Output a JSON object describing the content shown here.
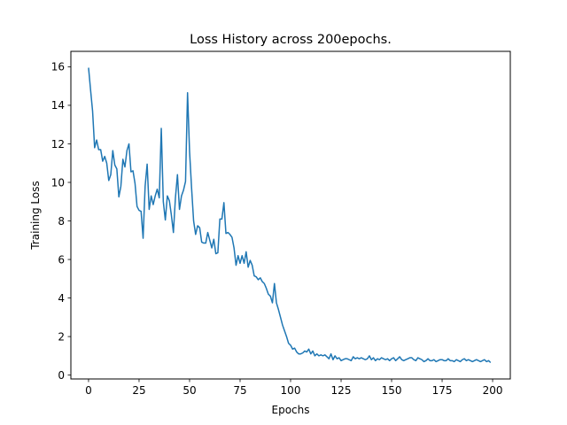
{
  "chart_data": {
    "type": "line",
    "title": "Loss History across 200epochs.",
    "xlabel": "Epochs",
    "ylabel": "Training Loss",
    "xlim": [
      -8.75,
      208.75
    ],
    "ylim": [
      -0.2,
      16.8
    ],
    "grid": false,
    "line_color": "#1f77b4",
    "x_ticks": [
      0,
      25,
      50,
      75,
      100,
      125,
      150,
      175,
      200
    ],
    "y_ticks": [
      0,
      2,
      4,
      6,
      8,
      10,
      12,
      14,
      16
    ],
    "series": [
      {
        "values": [
          15.95,
          14.8,
          13.7,
          11.8,
          12.2,
          11.7,
          11.7,
          11.1,
          11.35,
          11.0,
          10.1,
          10.4,
          11.65,
          10.9,
          10.7,
          9.25,
          9.8,
          11.2,
          10.8,
          11.65,
          12.0,
          10.55,
          10.6,
          9.95,
          8.75,
          8.55,
          8.5,
          7.1,
          9.8,
          10.95,
          8.6,
          9.3,
          8.85,
          9.3,
          9.65,
          9.2,
          12.8,
          9.0,
          8.05,
          9.3,
          9.05,
          8.3,
          7.4,
          9.2,
          10.4,
          8.6,
          9.3,
          9.6,
          10.05,
          14.65,
          11.6,
          9.7,
          8.0,
          7.3,
          7.75,
          7.65,
          6.9,
          6.85,
          6.85,
          7.4,
          7.0,
          6.6,
          7.05,
          6.3,
          6.35,
          8.1,
          8.1,
          8.95,
          7.35,
          7.4,
          7.3,
          7.15,
          6.6,
          5.7,
          6.2,
          5.8,
          6.2,
          5.8,
          6.4,
          5.6,
          5.95,
          5.7,
          5.15,
          5.1,
          4.95,
          5.05,
          4.85,
          4.75,
          4.5,
          4.2,
          4.1,
          3.75,
          4.75,
          3.75,
          3.4,
          3.0,
          2.6,
          2.3,
          2.0,
          1.65,
          1.55,
          1.35,
          1.4,
          1.2,
          1.1,
          1.1,
          1.15,
          1.25,
          1.2,
          1.35,
          1.1,
          1.25,
          1.0,
          1.1,
          1.0,
          1.05,
          1.0,
          1.05,
          0.95,
          0.85,
          1.1,
          0.8,
          1.0,
          0.85,
          0.9,
          0.75,
          0.8,
          0.85,
          0.85,
          0.8,
          0.75,
          0.95,
          0.85,
          0.9,
          0.85,
          0.9,
          0.85,
          0.8,
          0.85,
          1.0,
          0.8,
          0.9,
          0.75,
          0.85,
          0.8,
          0.9,
          0.85,
          0.8,
          0.85,
          0.75,
          0.85,
          0.9,
          0.75,
          0.85,
          0.95,
          0.8,
          0.75,
          0.8,
          0.85,
          0.9,
          0.9,
          0.8,
          0.75,
          0.9,
          0.85,
          0.8,
          0.7,
          0.75,
          0.85,
          0.75,
          0.75,
          0.8,
          0.7,
          0.75,
          0.8,
          0.8,
          0.75,
          0.75,
          0.85,
          0.75,
          0.75,
          0.7,
          0.8,
          0.75,
          0.7,
          0.8,
          0.85,
          0.75,
          0.8,
          0.75,
          0.7,
          0.75,
          0.8,
          0.75,
          0.7,
          0.75,
          0.8,
          0.7,
          0.75,
          0.65
        ]
      }
    ]
  }
}
